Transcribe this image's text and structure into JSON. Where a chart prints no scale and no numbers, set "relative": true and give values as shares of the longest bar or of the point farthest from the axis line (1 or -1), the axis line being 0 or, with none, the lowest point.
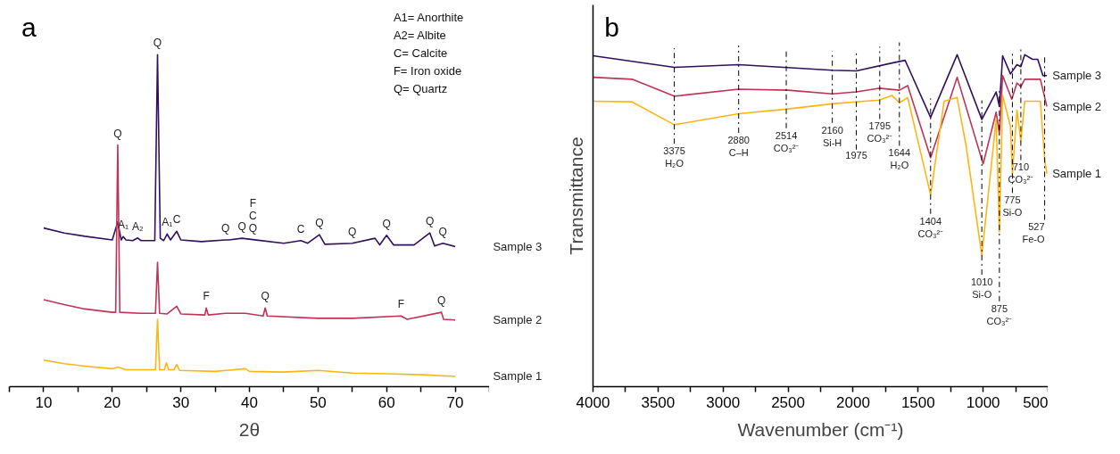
{
  "chart_data": [
    {
      "type": "line",
      "title": "a",
      "xlabel": "2θ",
      "relative": true,
      "grid": false,
      "legend": false,
      "marker": "none",
      "line_style": "solid",
      "tick_labels": "x",
      "xlim": [
        5,
        75
      ],
      "xticks": [
        {
          "value": 5,
          "label": null
        },
        10,
        {
          "value": 15,
          "label": null
        },
        20,
        {
          "value": 25,
          "label": null
        },
        30,
        {
          "value": 35,
          "label": null
        },
        40,
        {
          "value": 45,
          "label": null
        },
        50,
        {
          "value": 55,
          "label": null
        },
        60,
        {
          "value": 65,
          "label": null
        },
        70,
        {
          "value": 75,
          "label": null
        }
      ],
      "series": [
        {
          "name": "Sample 3",
          "color": "#30105f",
          "x": [
            10,
            13,
            16,
            20,
            20.8,
            21.3,
            21.6,
            22.0,
            23,
            23.7,
            24.2,
            26.2,
            26.6,
            27.0,
            27.5,
            28.0,
            28.5,
            29.4,
            30,
            33,
            36.5,
            37,
            38.9,
            40.5,
            45,
            47.5,
            48.5,
            50.2,
            51,
            55,
            58.3,
            59,
            60,
            61,
            64,
            66.3,
            67,
            68.2,
            70
          ],
          "values": [
            0.478,
            0.463,
            0.453,
            0.442,
            0.496,
            0.442,
            0.452,
            0.442,
            0.44,
            0.448,
            0.44,
            0.44,
            1.0,
            0.447,
            0.44,
            0.46,
            0.442,
            0.468,
            0.442,
            0.437,
            0.442,
            0.442,
            0.447,
            0.443,
            0.432,
            0.44,
            0.432,
            0.458,
            0.429,
            0.432,
            0.447,
            0.427,
            0.456,
            0.427,
            0.427,
            0.463,
            0.424,
            0.432,
            0.422
          ]
        },
        {
          "name": "Sample 2",
          "color": "#bf3355",
          "x": [
            10,
            13,
            16,
            20,
            20.5,
            20.8,
            21.1,
            24,
            26.3,
            26.6,
            26.9,
            28,
            29.4,
            30,
            33.5,
            33.7,
            34,
            36.5,
            39.4,
            42,
            42.3,
            42.6,
            50,
            55,
            62.1,
            63,
            68,
            68.3,
            70
          ],
          "values": [
            0.262,
            0.247,
            0.234,
            0.224,
            0.224,
            0.728,
            0.224,
            0.221,
            0.221,
            0.375,
            0.221,
            0.219,
            0.242,
            0.219,
            0.216,
            0.237,
            0.216,
            0.221,
            0.221,
            0.213,
            0.237,
            0.213,
            0.206,
            0.206,
            0.213,
            0.203,
            0.224,
            0.203,
            0.201
          ]
        },
        {
          "name": "Sample 1",
          "color": "#fdb515",
          "x": [
            10,
            13,
            16,
            20,
            20.8,
            22,
            26.3,
            26.6,
            26.9,
            27.6,
            27.9,
            28.2,
            29.0,
            29.4,
            29.8,
            35,
            39.4,
            40,
            45,
            50,
            55,
            60,
            65,
            70
          ],
          "values": [
            0.08,
            0.069,
            0.062,
            0.054,
            0.059,
            0.051,
            0.051,
            0.203,
            0.051,
            0.051,
            0.072,
            0.051,
            0.051,
            0.067,
            0.049,
            0.046,
            0.054,
            0.046,
            0.044,
            0.049,
            0.041,
            0.039,
            0.036,
            0.031
          ]
        }
      ],
      "annotations": [
        "A1= Anorthite",
        "A2= Albite",
        "C= Calcite",
        "F= Iron oxide",
        "Q= Quartz",
        {
          "text": "Q",
          "x": 26.6,
          "y": 1.0
        },
        {
          "text": "Q",
          "x": 20.8,
          "y": 0.728
        },
        {
          "text": "A₁",
          "x": 21.6,
          "y": 0.452
        },
        {
          "text": "A₂",
          "x": 23.7,
          "y": 0.448
        },
        {
          "text": "A₁",
          "x": 28.0,
          "y": 0.46
        },
        {
          "text": "C",
          "x": 29.4,
          "y": 0.468
        },
        {
          "text": "Q",
          "x": 36.5,
          "y": 0.442
        },
        {
          "text": "Q",
          "x": 38.9,
          "y": 0.447
        },
        {
          "text": "Q",
          "x": 40.5,
          "y": 0.443
        },
        {
          "text": "C",
          "x": 40.5,
          "y": 0.443
        },
        {
          "text": "F",
          "x": 40.5,
          "y": 0.443
        },
        {
          "text": "C",
          "x": 47.5,
          "y": 0.44
        },
        {
          "text": "Q",
          "x": 50.2,
          "y": 0.458
        },
        {
          "text": "Q",
          "x": 55,
          "y": 0.432
        },
        {
          "text": "Q",
          "x": 60,
          "y": 0.456
        },
        {
          "text": "Q",
          "x": 66.3,
          "y": 0.463
        },
        {
          "text": "Q",
          "x": 68.2,
          "y": 0.432
        },
        {
          "text": "F",
          "x": 33.7,
          "y": 0.237
        },
        {
          "text": "Q",
          "x": 42.3,
          "y": 0.237
        },
        {
          "text": "F",
          "x": 62.1,
          "y": 0.213
        },
        {
          "text": "Q",
          "x": 68,
          "y": 0.224
        }
      ]
    },
    {
      "type": "line",
      "title": "b",
      "xlabel": "Wavenumber (cm⁻¹)",
      "ylabel": "Transmittance",
      "relative": true,
      "grid": false,
      "legend": false,
      "marker": "none",
      "line_style": "solid",
      "tick_labels": "x",
      "xlim": [
        4000,
        500
      ],
      "xticks": [
        4000,
        {
          "value": 3750,
          "label": null
        },
        3500,
        {
          "value": 3250,
          "label": null
        },
        3000,
        {
          "value": 2750,
          "label": null
        },
        2500,
        {
          "value": 2250,
          "label": null
        },
        2000,
        {
          "value": 1750,
          "label": null
        },
        1500,
        {
          "value": 1250,
          "label": null
        },
        1000,
        {
          "value": 750,
          "label": null
        },
        500
      ],
      "series": [
        {
          "name": "Sample 3",
          "color": "#30105f",
          "x": [
            4000,
            3375,
            2880,
            2160,
            1975,
            1700,
            1600,
            1404,
            1200,
            1010,
            900,
            875,
            850,
            790,
            740,
            710,
            680,
            620,
            580,
            540,
            510
          ],
          "values": [
            0.997,
            0.962,
            0.97,
            0.953,
            0.951,
            0.975,
            0.983,
            0.811,
            1.0,
            0.805,
            0.888,
            0.844,
            0.997,
            0.942,
            0.97,
            0.964,
            1.0,
            0.986,
            0.986,
            0.937,
            0.937
          ]
        },
        {
          "name": "Sample 2",
          "color": "#bf3355",
          "x": [
            4000,
            3700,
            3375,
            2880,
            2500,
            2160,
            1975,
            1800,
            1644,
            1580,
            1404,
            1200,
            1000,
            900,
            875,
            850,
            780,
            740,
            710,
            680,
            560,
            510
          ],
          "values": [
            0.932,
            0.926,
            0.875,
            0.896,
            0.893,
            0.882,
            0.888,
            0.899,
            0.893,
            0.907,
            0.69,
            0.932,
            0.671,
            0.827,
            0.762,
            0.937,
            0.866,
            0.915,
            0.904,
            0.926,
            0.926,
            0.844
          ]
        },
        {
          "name": "Sample 1",
          "color": "#fdb515",
          "x": [
            4000,
            3700,
            3375,
            2880,
            2514,
            2160,
            1800,
            1700,
            1644,
            1580,
            1404,
            1300,
            1200,
            1130,
            1010,
            900,
            875,
            850,
            790,
            775,
            740,
            710,
            680,
            560,
            527,
            510
          ],
          "values": [
            0.86,
            0.858,
            0.789,
            0.822,
            0.836,
            0.852,
            0.863,
            0.877,
            0.855,
            0.871,
            0.578,
            0.86,
            0.871,
            0.723,
            0.395,
            0.805,
            0.466,
            0.877,
            0.784,
            0.641,
            0.833,
            0.74,
            0.86,
            0.86,
            0.685,
            0.641
          ]
        }
      ],
      "ref_lines": [
        {
          "axis": "x",
          "value": 3375,
          "label": "3375\nH₂O",
          "line_style": "dashdot",
          "color": "#000000"
        },
        {
          "axis": "x",
          "value": 2880,
          "label": "2880\nC–H",
          "line_style": "dashdot",
          "color": "#000000"
        },
        {
          "axis": "x",
          "value": 2514,
          "label": "2514\nCO₃²⁻",
          "line_style": "dashdot",
          "color": "#000000"
        },
        {
          "axis": "x",
          "value": 2160,
          "label": "2160\nSi-H",
          "line_style": "dashdot",
          "color": "#000000"
        },
        {
          "axis": "x",
          "value": 1975,
          "label": "1975",
          "line_style": "dashdot",
          "color": "#000000"
        },
        {
          "axis": "x",
          "value": 1795,
          "label": "1795\nCO₃²⁻",
          "line_style": "dashdot",
          "color": "#000000"
        },
        {
          "axis": "x",
          "value": 1644,
          "label": "1644\nH₂O",
          "line_style": "dashdot",
          "color": "#000000"
        },
        {
          "axis": "x",
          "value": 1404,
          "label": "1404\nCO₃²⁻",
          "line_style": "dashdot",
          "color": "#000000"
        },
        {
          "axis": "x",
          "value": 1010,
          "label": "1010\nSi-O",
          "line_style": "dashdot",
          "color": "#000000"
        },
        {
          "axis": "x",
          "value": 875,
          "label": "875\nCO₃²⁻",
          "line_style": "dashdot",
          "color": "#000000"
        },
        {
          "axis": "x",
          "value": 775,
          "label": "775\nSi-O",
          "line_style": "dashdot",
          "color": "#000000"
        },
        {
          "axis": "x",
          "value": 710,
          "label": "710\nCO₃²⁻",
          "line_style": "dashdot",
          "color": "#000000"
        },
        {
          "axis": "x",
          "value": 527,
          "label": "527\nFe-O",
          "line_style": "dashdot",
          "color": "#000000"
        }
      ]
    }
  ]
}
